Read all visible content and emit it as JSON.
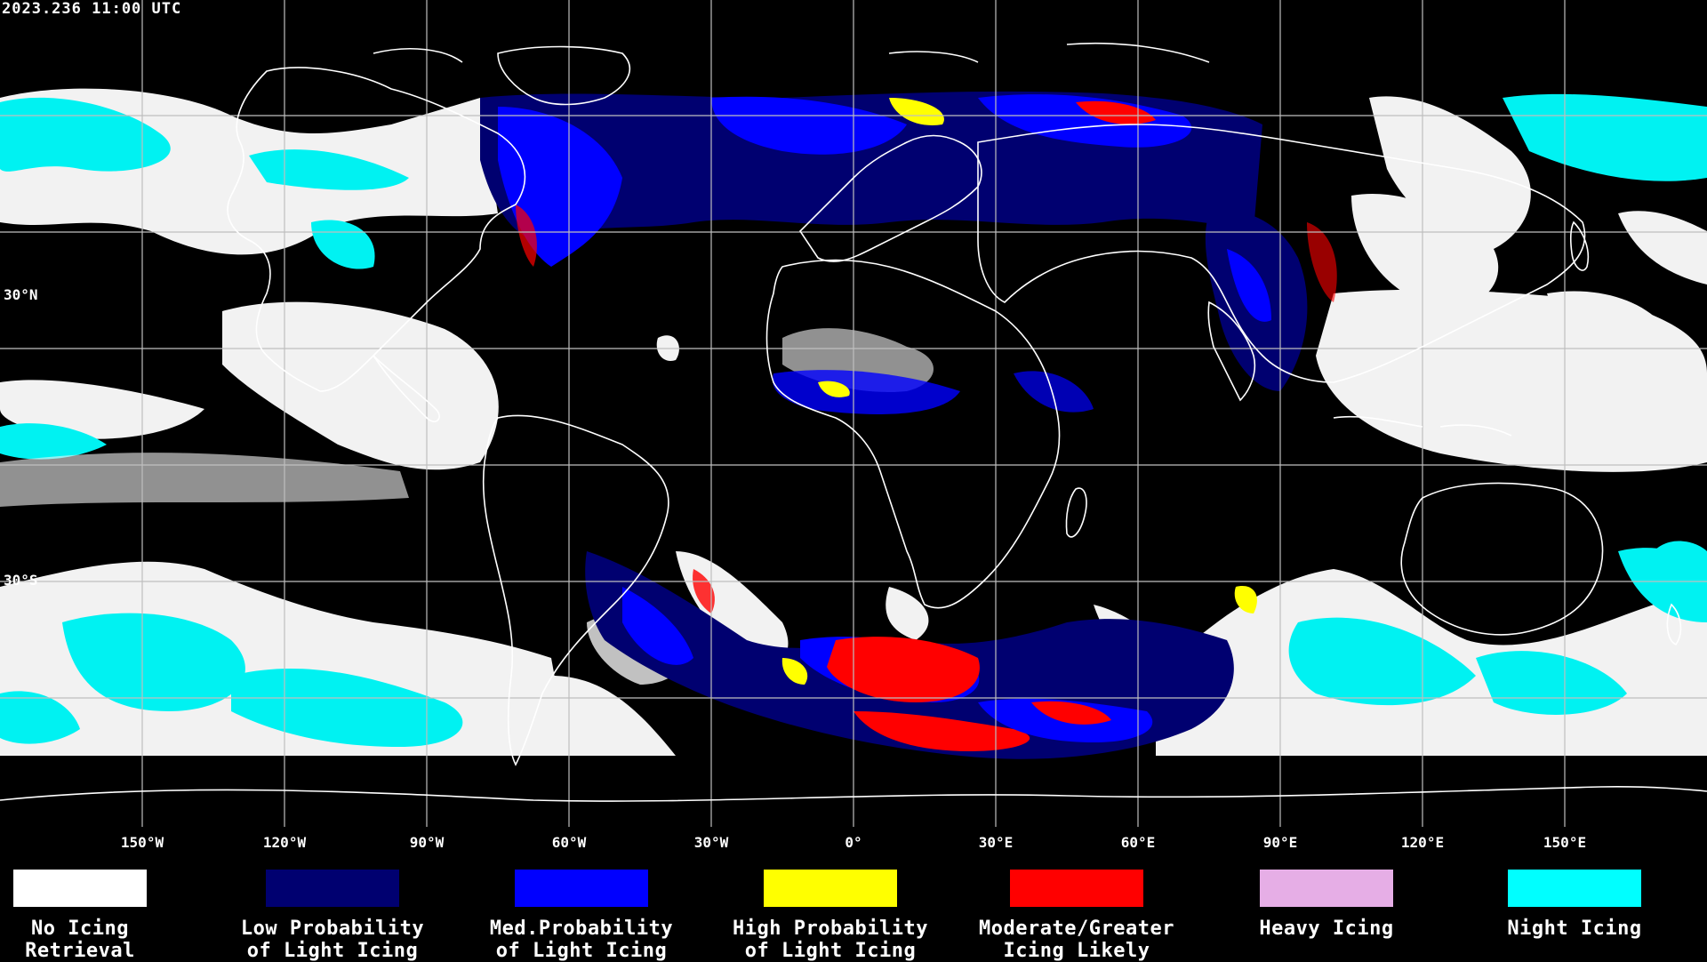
{
  "timestamp": "2023.236 11:00 UTC",
  "map": {
    "latitude_labels": [
      "30°N",
      "30°S"
    ],
    "longitude_labels": [
      "150°W",
      "120°W",
      "90°W",
      "60°W",
      "30°W",
      "0°",
      "30°E",
      "60°E",
      "90°E",
      "120°E",
      "150°E"
    ]
  },
  "legend": [
    {
      "line1": "No Icing",
      "line2": "Retrieval",
      "color": "#ffffff"
    },
    {
      "line1": "Low Probability",
      "line2": "of Light Icing",
      "color": "#000070"
    },
    {
      "line1": "Med.Probability",
      "line2": "of Light Icing",
      "color": "#0000ff"
    },
    {
      "line1": "High Probability",
      "line2": "of Light Icing",
      "color": "#ffff00"
    },
    {
      "line1": "Moderate/Greater",
      "line2": "Icing Likely",
      "color": "#ff0000"
    },
    {
      "line1": "Heavy Icing",
      "line2": "",
      "color": "#e6aee6"
    },
    {
      "line1": "Night Icing",
      "line2": "",
      "color": "#00ffff"
    }
  ],
  "icons": [
    "world-coastline-map"
  ]
}
